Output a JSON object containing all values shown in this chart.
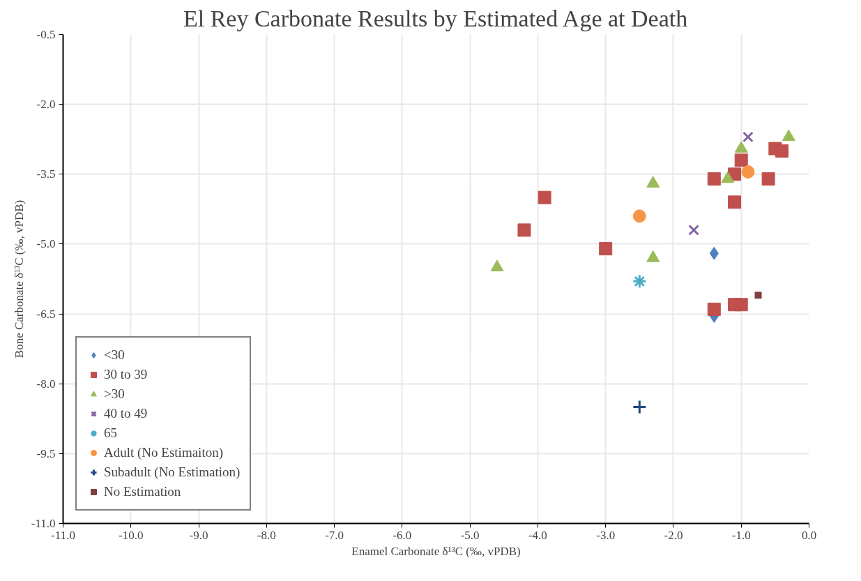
{
  "chart_data": {
    "type": "scatter",
    "title": "El Rey Carbonate Results by Estimated Age at Death",
    "xlabel": "Enamel Carbonate δ¹³C (‰, vPDB)",
    "ylabel": "Bone Carbonate δ¹³C (‰, vPDB)",
    "xlim": [
      -11,
      0
    ],
    "ylim": [
      -11,
      -0.5
    ],
    "xticks": [
      {
        "value": -11,
        "label": "-11.0"
      },
      {
        "value": -10,
        "label": "-10.0"
      },
      {
        "value": -9,
        "label": "-9.0"
      },
      {
        "value": -8,
        "label": "-8.0"
      },
      {
        "value": -7,
        "label": "-7.0"
      },
      {
        "value": -6,
        "label": "-6.0"
      },
      {
        "value": -5,
        "label": "-5.0"
      },
      {
        "value": -4,
        "label": "-4.0"
      },
      {
        "value": -3,
        "label": "-3.0"
      },
      {
        "value": -2,
        "label": "-2.0"
      },
      {
        "value": -1,
        "label": "-1.0"
      },
      {
        "value": 0,
        "label": "0.0"
      }
    ],
    "yticks": [
      {
        "value": -11,
        "label": "-11.0"
      },
      -9.5,
      {
        "value": -8,
        "label": "-8.0"
      },
      -6.5,
      {
        "value": -5,
        "label": "-5.0"
      },
      -3.5,
      {
        "value": -2,
        "label": "-2.0"
      },
      -0.5
    ],
    "grid": true,
    "legend": "bottom left",
    "series": [
      {
        "name": "<30",
        "color": "#4f81bd",
        "marker": "diamond",
        "x": [
          -1.4,
          -1.4
        ],
        "values": [
          -5.2,
          -6.55
        ]
      },
      {
        "name": "30 to 39",
        "color": "#c0504d",
        "marker": "square",
        "x": [
          -3.9,
          -4.2,
          -3.0,
          -0.5,
          -0.4,
          -1.0,
          -1.1,
          -1.4,
          -0.6,
          -1.1,
          -1.1,
          -1.0,
          -1.4
        ],
        "values": [
          -4.0,
          -4.7,
          -5.1,
          -2.95,
          -3.0,
          -3.2,
          -3.5,
          -3.6,
          -3.6,
          -4.1,
          -6.3,
          -6.3,
          -6.4
        ]
      },
      {
        "name": ">30",
        "color": "#9bbb59",
        "marker": "triangle",
        "x": [
          -4.6,
          -2.3,
          -2.3,
          -0.3,
          -1.0,
          -1.2
        ],
        "values": [
          -5.5,
          -3.7,
          -5.3,
          -2.7,
          -2.95,
          -3.6
        ]
      },
      {
        "name": "40 to 49",
        "color": "#8064a2",
        "marker": "x",
        "x": [
          -0.9,
          -1.7
        ],
        "values": [
          -2.7,
          -4.7
        ]
      },
      {
        "name": "65",
        "color": "#4bacc6",
        "marker": "cross",
        "x": [
          -2.5
        ],
        "values": [
          -5.8
        ]
      },
      {
        "name": "Adult (No Estimaiton)",
        "color": "#f79646",
        "marker": "circle",
        "x": [
          -2.5,
          -0.9
        ],
        "values": [
          -4.4,
          -3.45
        ]
      },
      {
        "name": "Subadult (No Estimation)",
        "color": "#1f497d",
        "marker": "cross",
        "x": [
          -2.5
        ],
        "values": [
          -8.5
        ]
      },
      {
        "name": "No Estimation",
        "color": "#7f3f3f",
        "marker": "square",
        "x": [
          -0.75
        ],
        "values": [
          -6.1
        ]
      }
    ]
  }
}
